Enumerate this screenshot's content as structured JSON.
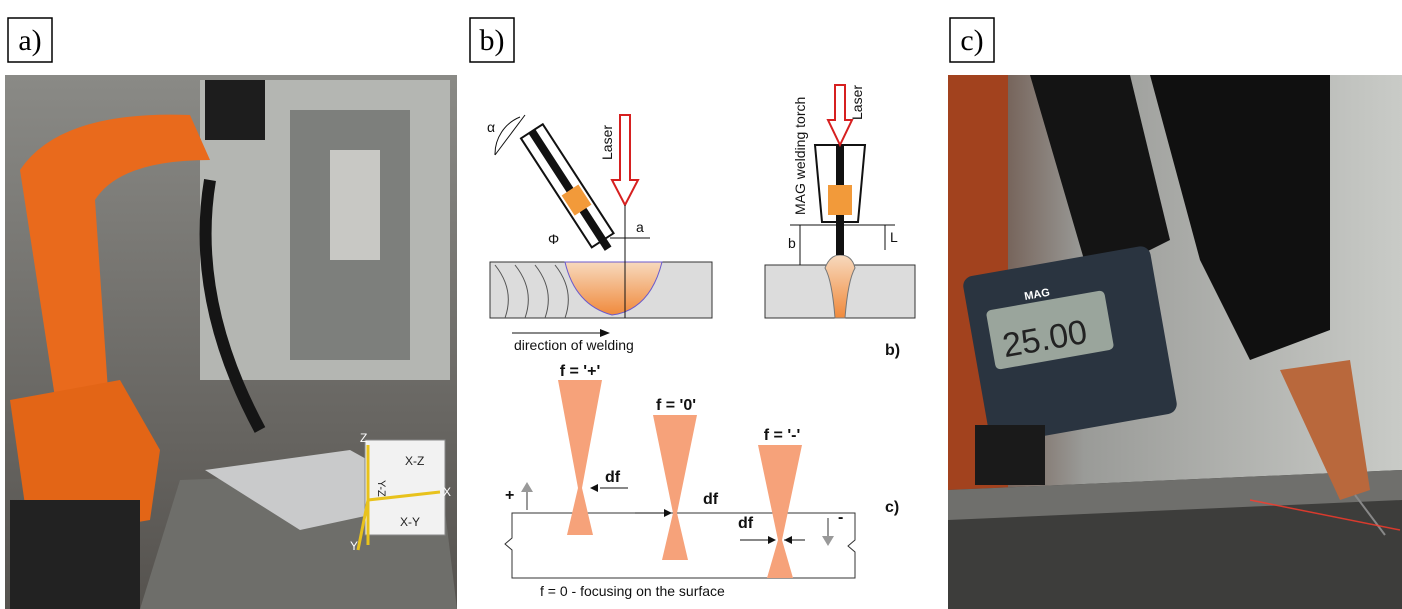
{
  "panels": [
    {
      "label": "a)",
      "annotations": {
        "z": "Z",
        "xz": "X-Z",
        "yz": "Y-Z",
        "xy": "X-Y",
        "x": "X",
        "y": "Y"
      }
    },
    {
      "label": "b)",
      "top_left": {
        "angle": "α",
        "diameter": "Φ",
        "laser": "Laser",
        "offset": "a",
        "direction": "direction of welding"
      },
      "top_right": {
        "torch": "MAG welding torch",
        "laser": "Laser",
        "height": "b",
        "length": "L",
        "label": "b)"
      },
      "bottom": {
        "focus": [
          {
            "label": "f = '+'",
            "width": "df"
          },
          {
            "label": "f = '0'",
            "width": "df"
          },
          {
            "label": "f = '-'",
            "width": "df"
          }
        ],
        "plus": "+",
        "minus": "-",
        "label": "c)",
        "caption": "f = 0 - focusing on the surface"
      }
    },
    {
      "label": "c)",
      "display": "25.00",
      "brand": "MAG"
    }
  ]
}
